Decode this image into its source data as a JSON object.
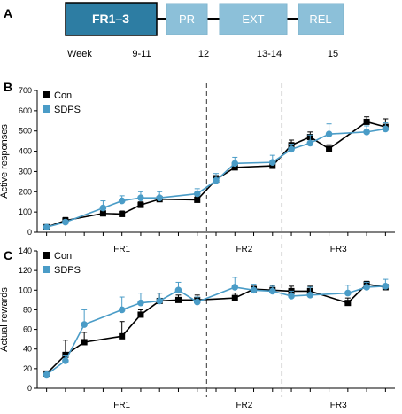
{
  "panels": {
    "a": "A",
    "b": "B",
    "c": "C"
  },
  "timeline": {
    "phases": [
      {
        "label": "FR1–3",
        "week": "9-11",
        "emphasis": true
      },
      {
        "label": "PR",
        "week": "12",
        "emphasis": false
      },
      {
        "label": "EXT",
        "week": "13-14",
        "emphasis": false
      },
      {
        "label": "REL",
        "week": "15",
        "emphasis": false
      }
    ],
    "week_label": "Week",
    "colors": {
      "active_fill": "#2d7da3",
      "active_border": "#000000",
      "inactive_fill": "#8cc0d9",
      "inactive_border": "#7fb3cc",
      "connector": "#000000"
    }
  },
  "chart_data": [
    {
      "type": "line",
      "ylabel": "Active responses",
      "xlabel": "",
      "ylim": [
        0,
        700
      ],
      "yticks": [
        0,
        100,
        200,
        300,
        400,
        500,
        600,
        700
      ],
      "sessions": 19,
      "phase_labels": [
        "FR1",
        "FR2",
        "FR3"
      ],
      "phase_boundaries_after_session": [
        9,
        13
      ],
      "legend_position": "top-left",
      "series": [
        {
          "name": "Con",
          "color": "#000000",
          "marker": "square",
          "values": [
            25,
            58,
            93,
            90,
            135,
            163,
            160,
            260,
            320,
            328,
            430,
            470,
            412,
            545,
            520
          ],
          "errors": [
            5,
            15,
            12,
            15,
            15,
            15,
            15,
            20,
            10,
            10,
            25,
            25,
            20,
            25,
            40
          ]
        },
        {
          "name": "SDPS",
          "color": "#4a9cc7",
          "marker": "circle",
          "values": [
            25,
            50,
            120,
            155,
            170,
            170,
            190,
            255,
            340,
            345,
            410,
            440,
            485,
            495,
            510
          ],
          "errors": [
            5,
            10,
            35,
            25,
            30,
            30,
            25,
            35,
            30,
            35,
            25,
            40,
            50,
            30,
            30
          ]
        }
      ]
    },
    {
      "type": "line",
      "ylabel": "Actual rewards",
      "xlabel": "",
      "ylim": [
        0,
        140
      ],
      "yticks": [
        0,
        20,
        40,
        60,
        80,
        100,
        120,
        140
      ],
      "sessions": 19,
      "phase_labels": [
        "FR1",
        "FR2",
        "FR3"
      ],
      "phase_boundaries_after_session": [
        9,
        13
      ],
      "legend_position": "top-left",
      "series": [
        {
          "name": "Con",
          "color": "#000000",
          "marker": "square",
          "values": [
            15,
            34,
            47,
            53,
            75,
            89,
            90,
            90,
            92,
            101,
            100,
            99,
            99,
            87,
            106,
            103
          ],
          "errors": [
            2,
            15,
            10,
            15,
            5,
            8,
            5,
            5,
            5,
            4,
            5,
            5,
            5,
            5,
            3,
            3
          ]
        },
        {
          "name": "SDPS",
          "color": "#4a9cc7",
          "marker": "circle",
          "values": [
            14,
            28,
            65,
            80,
            87,
            89,
            100,
            88,
            103,
            100,
            99,
            94,
            95,
            97,
            103,
            104
          ],
          "errors": [
            2,
            5,
            15,
            13,
            10,
            8,
            8,
            5,
            10,
            6,
            5,
            5,
            8,
            8,
            5,
            7
          ]
        }
      ]
    }
  ]
}
